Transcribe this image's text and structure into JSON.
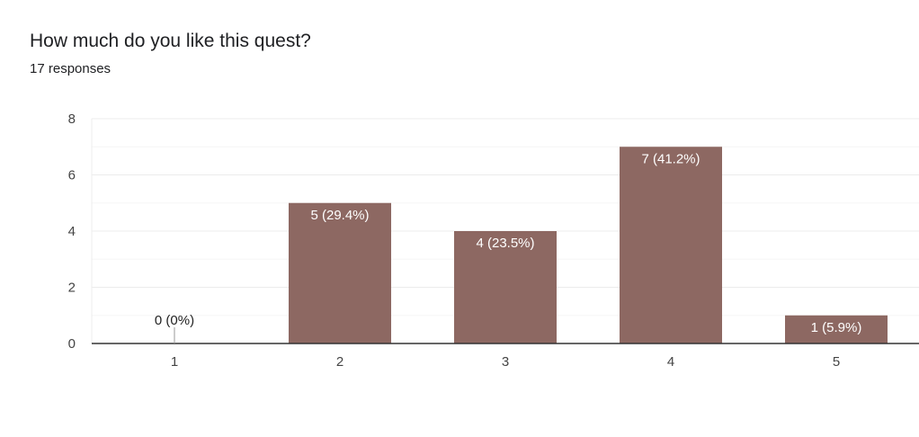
{
  "header": {
    "question": "How much do you like this quest?",
    "responses": "17 responses"
  },
  "colors": {
    "bar": "#8d6862",
    "grid": "#ececec",
    "axis": "#333333",
    "text": "#444444"
  },
  "chart_data": {
    "type": "bar",
    "categories": [
      "1",
      "2",
      "3",
      "4",
      "5"
    ],
    "values": [
      0,
      5,
      4,
      7,
      1
    ],
    "data_labels": [
      "0 (0%)",
      "5 (29.4%)",
      "4 (23.5%)",
      "7 (41.2%)",
      "1 (5.9%)"
    ],
    "title": "How much do you like this quest?",
    "subtitle": "17 responses",
    "ylim": [
      0,
      8
    ],
    "yticks": [
      0,
      2,
      4,
      6,
      8
    ],
    "grid": true,
    "legend": "none"
  }
}
